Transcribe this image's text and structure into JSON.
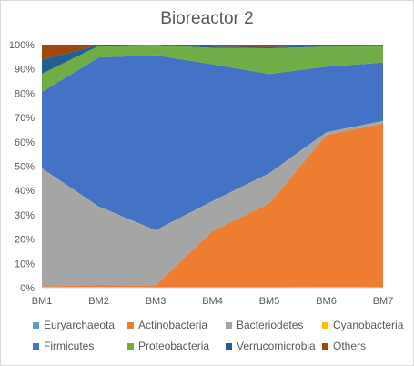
{
  "chart_data": {
    "type": "area",
    "stacked": "percent",
    "title": "Bioreactor 2",
    "xlabel": "",
    "ylabel": "",
    "categories": [
      "BM1",
      "BM2",
      "BM3",
      "BM4",
      "BM5",
      "BM6",
      "BM7"
    ],
    "ylim": [
      0,
      100
    ],
    "yticks": [
      "0%",
      "10%",
      "20%",
      "30%",
      "40%",
      "50%",
      "60%",
      "70%",
      "80%",
      "90%",
      "100%"
    ],
    "grid": false,
    "legend_position": "bottom",
    "series": [
      {
        "name": "Euryarchaeota",
        "color": "#5b9bd5",
        "values": [
          0.3,
          0.3,
          0.2,
          0.2,
          0.2,
          0.3,
          0.2
        ]
      },
      {
        "name": "Actinobacteria",
        "color": "#ed7d31",
        "values": [
          0.2,
          0.8,
          0.8,
          23.0,
          34.5,
          62.5,
          67.3
        ]
      },
      {
        "name": "Bacteriodetes",
        "color": "#a5a5a5",
        "values": [
          48.5,
          32.2,
          22.5,
          12.3,
          12.3,
          1.0,
          1.0
        ]
      },
      {
        "name": "Cyanobacteria",
        "color": "#ffc000",
        "values": [
          0.1,
          0.1,
          0.1,
          0.1,
          0.1,
          0.1,
          0.1
        ]
      },
      {
        "name": "Firmicutes",
        "color": "#4472c4",
        "values": [
          31.4,
          61.3,
          72.0,
          56.3,
          40.8,
          27.0,
          24.0
        ]
      },
      {
        "name": "Proteobacteria",
        "color": "#70ad47",
        "values": [
          7.5,
          4.8,
          4.2,
          6.8,
          10.6,
          8.3,
          6.8
        ]
      },
      {
        "name": "Verrucomicrobia",
        "color": "#255e91",
        "values": [
          5.8,
          0.3,
          0.1,
          0.5,
          0.5,
          0.4,
          0.3
        ]
      },
      {
        "name": "Others",
        "color": "#9e480e",
        "values": [
          6.2,
          0.2,
          0.1,
          0.8,
          1.0,
          0.4,
          0.3
        ]
      }
    ]
  }
}
